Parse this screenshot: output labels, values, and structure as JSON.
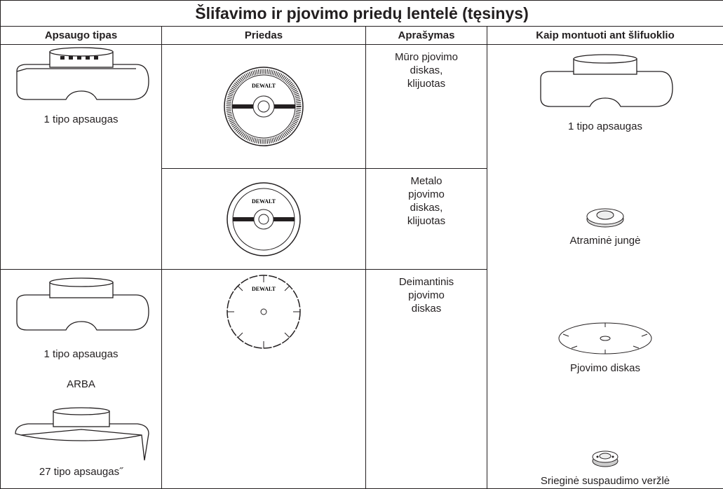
{
  "title": "Šlifavimo ir pjovimo priedų lentelė (tęsinys)",
  "headers": [
    "Apsaugo tipas",
    "Priedas",
    "Aprašymas",
    "Kaip montuoti ant šlifuoklio"
  ],
  "rows": [
    {
      "guard": [
        "1 tipo apsaugas"
      ],
      "logo": "DEWALT",
      "description": "Mūro pjovimo diskas, klijuotas"
    },
    {
      "logo": "DEWALT",
      "description": "Metalo pjovimo diskas, klijuotas"
    },
    {
      "guard": [
        "1 tipo apsaugas",
        "ARBA",
        "27 tipo apsaugas˝"
      ],
      "logo": "DEWALT",
      "description": "Deimantinis pjovimo diskas"
    }
  ],
  "mounting": [
    "1 tipo apsaugas",
    "Atraminė jungė",
    "Pjovimo diskas",
    "Srieginė suspaudimo veržlė"
  ]
}
